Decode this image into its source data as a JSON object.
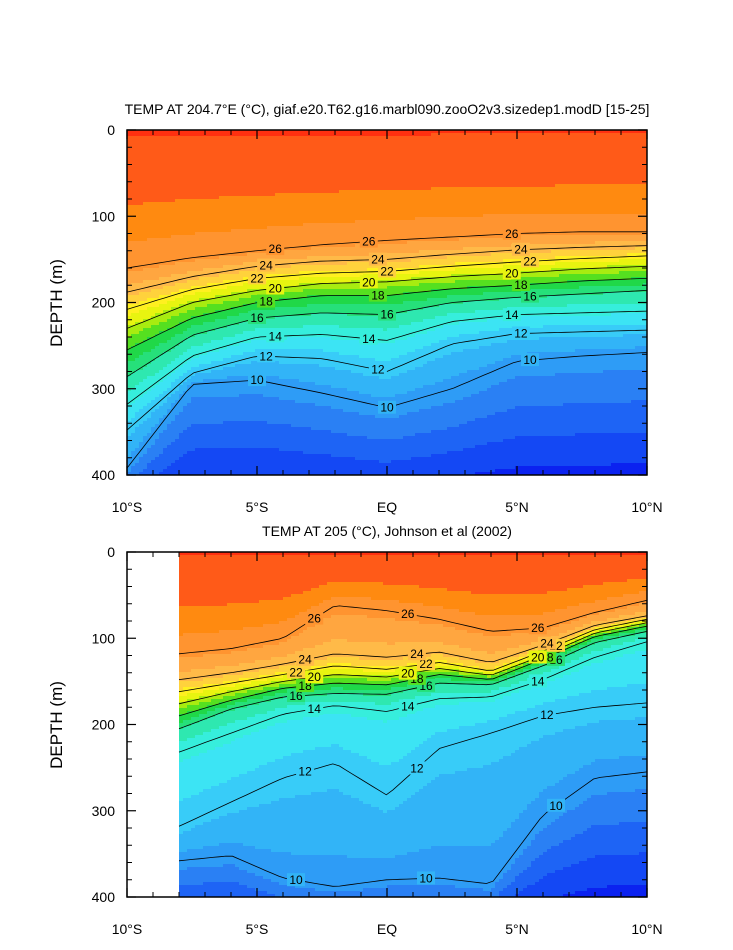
{
  "colors": {
    "levels": [
      4,
      6,
      8,
      10,
      12,
      14,
      16,
      18,
      20,
      22,
      24,
      26,
      28,
      32
    ],
    "palette": [
      "#0000dd",
      "#0b22f0",
      "#1448f4",
      "#1e64f5",
      "#2a80f4",
      "#2e9cf6",
      "#32b4f7",
      "#38ccf8",
      "#3ce4f4",
      "#36eedc",
      "#2ee8b0",
      "#26e07a",
      "#20d848",
      "#55e020",
      "#a8ec10",
      "#e8f410",
      "#fff020",
      "#ffd23c",
      "#ffba48",
      "#ffa640",
      "#ff9430",
      "#ff8a10",
      "#ff5a18",
      "#ff3010",
      "#ff0a00"
    ]
  },
  "shared": {
    "ylabel": "DEPTH (m)",
    "yticks": [
      "0",
      "100",
      "200",
      "300",
      "400"
    ],
    "xticks": [
      "10°S",
      "5°S",
      "EQ",
      "5°N",
      "10°N"
    ]
  },
  "chart_data": [
    {
      "type": "heatmap",
      "title": "TEMP AT 204.7°E (°C), giaf.e20.T62.g16.marbl090.zooO2v3.sizedep1.modD [15-25]",
      "ylabel": "DEPTH (m)",
      "xlim": [
        -10,
        10
      ],
      "ylim": [
        400,
        0
      ],
      "contour_labels": [
        "10",
        "12",
        "14",
        "16",
        "18",
        "20",
        "22",
        "24",
        "26"
      ],
      "profile_lats": [
        -10,
        -7.5,
        -5,
        -2.5,
        0,
        2.5,
        5,
        7.5,
        10
      ],
      "isotherm_depths": {
        "10": [
          392,
          295,
          290,
          305,
          322,
          300,
          268,
          262,
          258
        ],
        "12": [
          348,
          282,
          262,
          265,
          280,
          248,
          236,
          234,
          232
        ],
        "14": [
          318,
          262,
          240,
          237,
          244,
          222,
          214,
          212,
          210
        ],
        "16": [
          286,
          238,
          218,
          212,
          214,
          200,
          194,
          190,
          186
        ],
        "18": [
          255,
          218,
          200,
          192,
          192,
          184,
          180,
          175,
          172
        ],
        "20": [
          230,
          200,
          186,
          178,
          176,
          170,
          166,
          161,
          158
        ],
        "22": [
          208,
          185,
          172,
          166,
          164,
          158,
          153,
          149,
          146
        ],
        "24": [
          188,
          170,
          158,
          152,
          150,
          144,
          139,
          136,
          134
        ],
        "26": [
          160,
          148,
          140,
          133,
          128,
          124,
          120,
          118,
          118
        ]
      }
    },
    {
      "type": "heatmap",
      "title": "TEMP AT 205 (°C), Johnson et al (2002)",
      "ylabel": "DEPTH (m)",
      "xlim": [
        -10,
        10
      ],
      "ylim": [
        400,
        0
      ],
      "contour_labels": [
        "10",
        "12",
        "14",
        "16",
        "18",
        "20",
        "22",
        "24",
        "26"
      ],
      "profile_lats": [
        -8,
        -6,
        -4,
        -2,
        0,
        2,
        4,
        6,
        8,
        10
      ],
      "isotherm_depths": {
        "10": [
          358,
          352,
          378,
          388,
          380,
          378,
          385,
          305,
          262,
          255
        ],
        "12": [
          318,
          290,
          262,
          245,
          282,
          228,
          210,
          190,
          180,
          175
        ],
        "14": [
          232,
          210,
          188,
          178,
          185,
          170,
          168,
          148,
          122,
          104
        ],
        "16": [
          205,
          182,
          168,
          164,
          165,
          152,
          154,
          132,
          105,
          92
        ],
        "18": [
          190,
          172,
          158,
          152,
          154,
          142,
          148,
          124,
          98,
          86
        ],
        "20": [
          176,
          162,
          150,
          142,
          145,
          135,
          143,
          120,
          94,
          82
        ],
        "22": [
          162,
          152,
          142,
          132,
          136,
          128,
          138,
          115,
          90,
          78
        ],
        "24": [
          148,
          140,
          130,
          118,
          122,
          116,
          128,
          108,
          85,
          74
        ],
        "26": [
          118,
          112,
          100,
          62,
          68,
          78,
          92,
          88,
          70,
          56
        ]
      }
    }
  ]
}
